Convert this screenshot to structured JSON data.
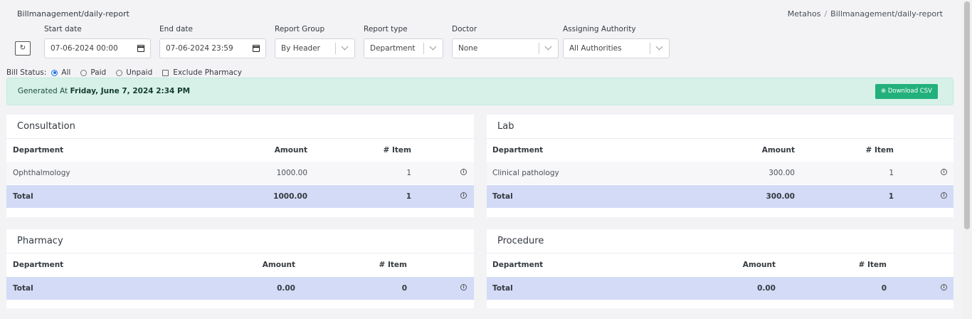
{
  "header": {
    "page_title": "Billmanagement/daily-report",
    "breadcrumb": [
      "Metahos",
      "Billmanagement/daily-report"
    ]
  },
  "filters": {
    "refresh_icon": "refresh-icon",
    "start_date": {
      "label": "Start date",
      "value": "07-06-2024 00:00"
    },
    "end_date": {
      "label": "End date",
      "value": "07-06-2024 23:59"
    },
    "report_group": {
      "label": "Report Group",
      "value": "By Header"
    },
    "report_type": {
      "label": "Report type",
      "value": "Department"
    },
    "doctor": {
      "label": "Doctor",
      "value": "None"
    },
    "assigning_authority": {
      "label": "Assigning Authority",
      "value": "All Authorities"
    }
  },
  "bill_status": {
    "label": "Bill Status:",
    "options": [
      "All",
      "Paid",
      "Unpaid"
    ],
    "selected": "All",
    "exclude_pharmacy": "Exclude Pharmacy",
    "exclude_pharmacy_checked": false
  },
  "alert": {
    "prefix": "Generated At",
    "timestamp": "Friday, June 7, 2024 2:34 PM",
    "download_label": "Download CSV",
    "color": "#22b07d"
  },
  "cards": {
    "consultation": {
      "title": "Consultation",
      "headers": [
        "Department",
        "Amount",
        "# Item"
      ],
      "rows": [
        {
          "dept": "Ophthalmology",
          "amount": "1000.00",
          "items": "1"
        }
      ],
      "total": {
        "label": "Total",
        "amount": "1000.00",
        "items": "1"
      }
    },
    "lab": {
      "title": "Lab",
      "headers": [
        "Department",
        "Amount",
        "# Item"
      ],
      "rows": [
        {
          "dept": "Clinical pathology",
          "amount": "300.00",
          "items": "1"
        }
      ],
      "total": {
        "label": "Total",
        "amount": "300.00",
        "items": "1"
      }
    },
    "pharmacy": {
      "title": "Pharmacy",
      "headers": [
        "Department",
        "Amount",
        "# Item"
      ],
      "rows": [],
      "total": {
        "label": "Total",
        "amount": "0.00",
        "items": "0"
      }
    },
    "procedure": {
      "title": "Procedure",
      "headers": [
        "Department",
        "Amount",
        "# Item"
      ],
      "rows": [],
      "total": {
        "label": "Total",
        "amount": "0.00",
        "items": "0"
      }
    }
  },
  "colors": {
    "total_row": "#d4dbf6",
    "alert_bg": "#d7f1e8"
  }
}
